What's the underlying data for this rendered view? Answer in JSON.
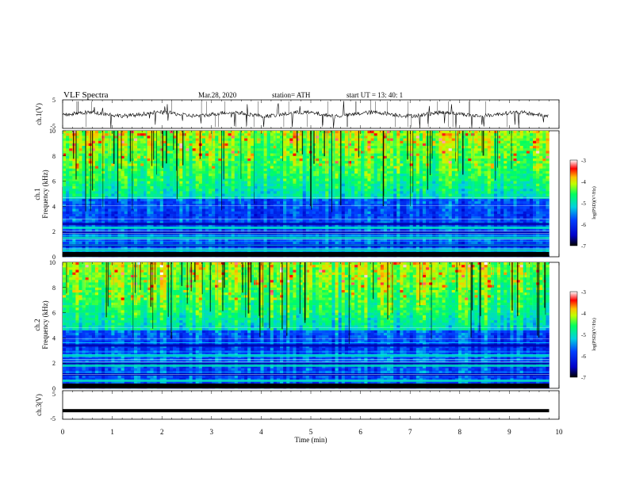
{
  "header": {
    "title": "VLF  Spectra",
    "date": "Mar.28,  2020",
    "station": "station= ATH",
    "start": "start  UT  =    13: 40: 1"
  },
  "chart_data": [
    {
      "type": "line",
      "panel": "ch1-waveform",
      "ylabel": "ch.1(V)",
      "ylim": [
        -5,
        5
      ],
      "yticks": [
        "5",
        "-5"
      ],
      "xlim": [
        0,
        10
      ],
      "baseline_value": 0,
      "color": "#000000",
      "note_visible": ""
    },
    {
      "type": "heatmap",
      "panel": "ch1-spectrogram",
      "ylabel": "ch.1\nFrequency  (kHz)",
      "ylabel_line1": "ch.1",
      "ylabel_line2": "Frequency  (kHz)",
      "ylim": [
        0,
        10
      ],
      "yticks": [
        "0",
        "2",
        "4",
        "6",
        "8",
        "10"
      ],
      "xlim": [
        0,
        9.8
      ],
      "colorbar": {
        "label": "log(PSD)(V²/Hz)",
        "range": [
          -7,
          -3
        ],
        "ticks": [
          "-3",
          "-4",
          "-5",
          "-6",
          "-7"
        ]
      },
      "bands_khz": [
        0.5,
        0.9,
        1.5,
        1.9,
        2.3,
        2.6
      ]
    },
    {
      "type": "heatmap",
      "panel": "ch2-spectrogram",
      "ylabel_line1": "ch.2",
      "ylabel_line2": "Frequency  (kHz)",
      "ylim": [
        0,
        10
      ],
      "yticks": [
        "0",
        "2",
        "4",
        "6",
        "8",
        "10"
      ],
      "xlim": [
        0,
        9.8
      ],
      "colorbar": {
        "label": "log(PSD)(V²/Hz)",
        "range": [
          -7,
          -3
        ],
        "ticks": [
          "-3",
          "-4",
          "-5",
          "-6",
          "-7"
        ]
      },
      "bands_khz": [
        0.6,
        1.1,
        1.8,
        2.0,
        2.6,
        3.4
      ]
    },
    {
      "type": "line",
      "panel": "ch3-waveform",
      "ylabel": "ch.3(V)",
      "ylim": [
        -5,
        5
      ],
      "yticks": [
        "5",
        "-5"
      ],
      "xlim": [
        0,
        9.8
      ],
      "level": -2
    }
  ],
  "xaxis": {
    "label": "Time  (min)",
    "ticks": [
      "0",
      "1",
      "2",
      "3",
      "4",
      "5",
      "6",
      "7",
      "8",
      "9",
      "10"
    ],
    "range": [
      0,
      10
    ]
  },
  "colors": {
    "colormap": [
      "#000000",
      "#0000ff",
      "#00bfff",
      "#00ff80",
      "#ffff00",
      "#ff0000",
      "#ffffff"
    ]
  }
}
